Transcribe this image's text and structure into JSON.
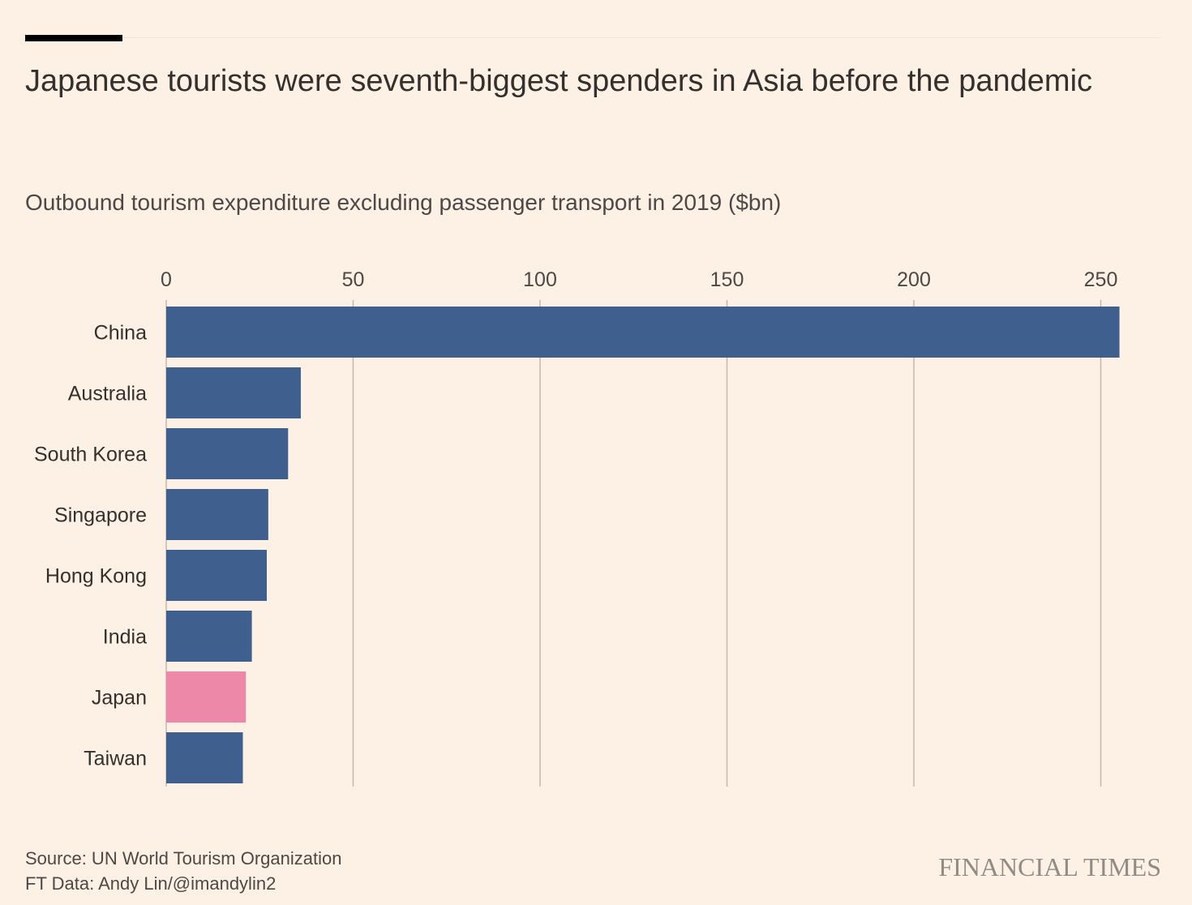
{
  "title": "Japanese tourists were seventh-biggest spenders in Asia before the pandemic",
  "subtitle": "Outbound tourism expenditure excluding passenger transport in 2019 ($bn)",
  "footer": {
    "source": "Source: UN World Tourism Organization",
    "credit": "FT Data: Andy Lin/@imandylin2"
  },
  "brand": "FINANCIAL TIMES",
  "colors": {
    "background": "#FDF1E6",
    "bar": "#3F5F8E",
    "highlight": "#EE88A9",
    "grid": "#C2B9B0",
    "text": "#33302E"
  },
  "chart_data": {
    "type": "bar",
    "orientation": "horizontal",
    "title": "Japanese tourists were seventh-biggest spenders in Asia before the pandemic",
    "subtitle": "Outbound tourism expenditure excluding passenger transport in 2019 ($bn)",
    "categories": [
      "China",
      "Australia",
      "South Korea",
      "Singapore",
      "Hong Kong",
      "India",
      "Japan",
      "Taiwan"
    ],
    "values": [
      255,
      36,
      32.6,
      27.3,
      26.9,
      22.9,
      21.3,
      20.5
    ],
    "highlight": "Japan",
    "xlim": [
      0,
      255
    ],
    "xticks": [
      0,
      50,
      100,
      150,
      200,
      250
    ],
    "xaxis_position": "top",
    "grid": true,
    "legend": "none"
  }
}
